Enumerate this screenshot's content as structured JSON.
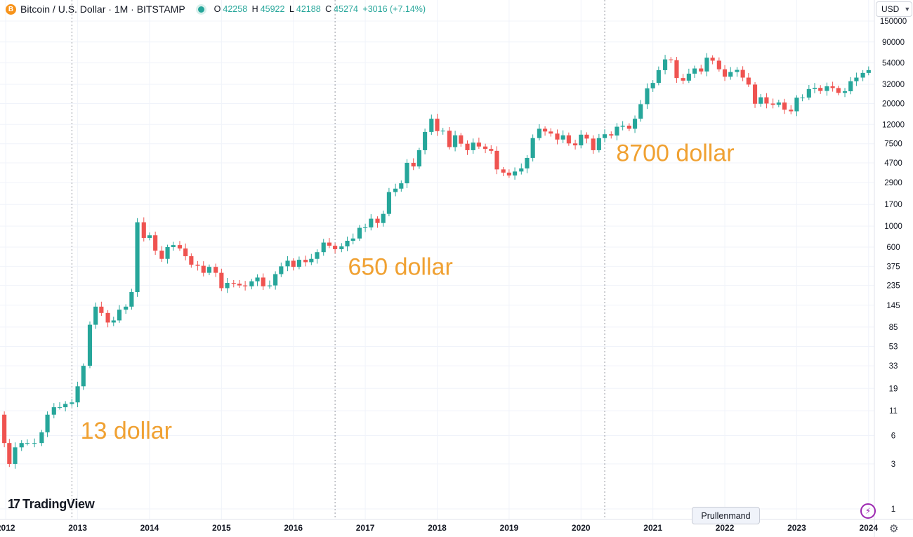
{
  "header": {
    "symbol_title": "Bitcoin / U.S. Dollar · 1M · BITSTAMP",
    "coin_icon": "B",
    "ohlc": {
      "o_label": "O",
      "o_value": "42258",
      "h_label": "H",
      "h_value": "45922",
      "l_label": "L",
      "l_value": "42188",
      "c_label": "C",
      "c_value": "45274",
      "change": "+3016 (+7.14%)"
    }
  },
  "currency_selector": {
    "label": "USD",
    "icon": "chevron-down-icon"
  },
  "logo": {
    "mark": "17",
    "text": "TradingView"
  },
  "tooltip": {
    "text": "Prullenmand"
  },
  "colors": {
    "up": "#26a69a",
    "down": "#ef5350",
    "annotation": "#f0a132",
    "grid": "#f0f3fa"
  },
  "icons": {
    "alert": "lightning-icon",
    "settings": "gear-icon"
  },
  "chart_data": {
    "type": "candlestick",
    "title": "Bitcoin / U.S. Dollar · 1M · BITSTAMP",
    "y_scale": "log",
    "ylim": [
      1,
      150000
    ],
    "y_ticks": [
      "150000",
      "90000",
      "54000",
      "32000",
      "20000",
      "12000",
      "7500",
      "4700",
      "2900",
      "1700",
      "1000",
      "600",
      "375",
      "235",
      "145",
      "85",
      "53",
      "33",
      "19",
      "11",
      "6",
      "3",
      "1"
    ],
    "x_ticks": [
      "2012",
      "2013",
      "2014",
      "2015",
      "2016",
      "2017",
      "2018",
      "2019",
      "2020",
      "2021",
      "2022",
      "2023",
      "2024"
    ],
    "x_range": [
      2011.92,
      2024.08
    ],
    "grid": true,
    "annotations": [
      {
        "text": "13 dollar",
        "x": 2013.0,
        "y": 6.8
      },
      {
        "text": "650 dollar",
        "x": 2016.72,
        "y": 375
      },
      {
        "text": "8700 dollar",
        "x": 2020.45,
        "y": 6000
      }
    ],
    "marker_lines": [
      2012.92,
      2016.58,
      2020.33
    ],
    "anchors": [
      [
        2011.92,
        10
      ],
      [
        2011.98,
        5
      ],
      [
        2012.05,
        3
      ],
      [
        2012.13,
        4.5
      ],
      [
        2012.22,
        5
      ],
      [
        2012.3,
        5
      ],
      [
        2012.4,
        5
      ],
      [
        2012.5,
        6.5
      ],
      [
        2012.58,
        10
      ],
      [
        2012.67,
        12
      ],
      [
        2012.75,
        12
      ],
      [
        2012.83,
        13
      ],
      [
        2012.92,
        13.5
      ],
      [
        2013.0,
        20
      ],
      [
        2013.08,
        33
      ],
      [
        2013.17,
        90
      ],
      [
        2013.25,
        140
      ],
      [
        2013.33,
        120
      ],
      [
        2013.42,
        95
      ],
      [
        2013.5,
        100
      ],
      [
        2013.58,
        130
      ],
      [
        2013.67,
        140
      ],
      [
        2013.75,
        200
      ],
      [
        2013.83,
        1100
      ],
      [
        2013.92,
        750
      ],
      [
        2014.0,
        800
      ],
      [
        2014.08,
        550
      ],
      [
        2014.17,
        450
      ],
      [
        2014.25,
        600
      ],
      [
        2014.33,
        630
      ],
      [
        2014.42,
        580
      ],
      [
        2014.5,
        480
      ],
      [
        2014.58,
        390
      ],
      [
        2014.67,
        380
      ],
      [
        2014.75,
        320
      ],
      [
        2014.83,
        370
      ],
      [
        2014.92,
        320
      ],
      [
        2015.0,
        220
      ],
      [
        2015.08,
        250
      ],
      [
        2015.17,
        245
      ],
      [
        2015.25,
        235
      ],
      [
        2015.33,
        230
      ],
      [
        2015.42,
        260
      ],
      [
        2015.5,
        285
      ],
      [
        2015.58,
        230
      ],
      [
        2015.67,
        235
      ],
      [
        2015.75,
        310
      ],
      [
        2015.83,
        375
      ],
      [
        2015.92,
        430
      ],
      [
        2016.0,
        370
      ],
      [
        2016.08,
        440
      ],
      [
        2016.17,
        415
      ],
      [
        2016.25,
        450
      ],
      [
        2016.33,
        530
      ],
      [
        2016.42,
        670
      ],
      [
        2016.5,
        620
      ],
      [
        2016.58,
        570
      ],
      [
        2016.67,
        610
      ],
      [
        2016.75,
        700
      ],
      [
        2016.83,
        740
      ],
      [
        2016.92,
        960
      ],
      [
        2017.0,
        970
      ],
      [
        2017.08,
        1200
      ],
      [
        2017.17,
        1080
      ],
      [
        2017.25,
        1350
      ],
      [
        2017.33,
        2300
      ],
      [
        2017.42,
        2500
      ],
      [
        2017.5,
        2850
      ],
      [
        2017.58,
        4700
      ],
      [
        2017.67,
        4300
      ],
      [
        2017.75,
        6400
      ],
      [
        2017.83,
        10000
      ],
      [
        2017.92,
        13800
      ],
      [
        2018.0,
        10200
      ],
      [
        2018.08,
        10300
      ],
      [
        2018.17,
        6900
      ],
      [
        2018.25,
        9200
      ],
      [
        2018.33,
        7500
      ],
      [
        2018.42,
        6400
      ],
      [
        2018.5,
        7700
      ],
      [
        2018.58,
        7000
      ],
      [
        2018.67,
        6600
      ],
      [
        2018.75,
        6300
      ],
      [
        2018.83,
        4000
      ],
      [
        2018.92,
        3700
      ],
      [
        2019.0,
        3450
      ],
      [
        2019.08,
        3800
      ],
      [
        2019.17,
        4100
      ],
      [
        2019.25,
        5300
      ],
      [
        2019.33,
        8600
      ],
      [
        2019.42,
        10800
      ],
      [
        2019.5,
        10100
      ],
      [
        2019.58,
        9600
      ],
      [
        2019.67,
        8300
      ],
      [
        2019.75,
        9200
      ],
      [
        2019.83,
        7550
      ],
      [
        2019.92,
        7200
      ],
      [
        2020.0,
        9350
      ],
      [
        2020.08,
        8500
      ],
      [
        2020.17,
        6400
      ],
      [
        2020.25,
        8600
      ],
      [
        2020.33,
        9450
      ],
      [
        2020.42,
        9150
      ],
      [
        2020.5,
        11350
      ],
      [
        2020.58,
        11650
      ],
      [
        2020.67,
        10800
      ],
      [
        2020.75,
        13800
      ],
      [
        2020.83,
        19700
      ],
      [
        2020.92,
        29000
      ],
      [
        2021.0,
        33100
      ],
      [
        2021.08,
        45200
      ],
      [
        2021.17,
        58800
      ],
      [
        2021.25,
        57700
      ],
      [
        2021.33,
        37300
      ],
      [
        2021.42,
        35000
      ],
      [
        2021.5,
        41500
      ],
      [
        2021.58,
        47100
      ],
      [
        2021.67,
        43800
      ],
      [
        2021.75,
        61300
      ],
      [
        2021.83,
        57000
      ],
      [
        2021.92,
        46200
      ],
      [
        2022.0,
        38500
      ],
      [
        2022.08,
        43200
      ],
      [
        2022.17,
        45500
      ],
      [
        2022.25,
        37700
      ],
      [
        2022.33,
        31800
      ],
      [
        2022.42,
        19900
      ],
      [
        2022.5,
        23300
      ],
      [
        2022.58,
        20000
      ],
      [
        2022.67,
        19400
      ],
      [
        2022.75,
        20500
      ],
      [
        2022.83,
        17200
      ],
      [
        2022.92,
        16550
      ],
      [
        2023.0,
        23100
      ],
      [
        2023.08,
        23150
      ],
      [
        2023.17,
        28500
      ],
      [
        2023.25,
        29300
      ],
      [
        2023.33,
        27200
      ],
      [
        2023.42,
        30500
      ],
      [
        2023.5,
        29200
      ],
      [
        2023.58,
        25950
      ],
      [
        2023.67,
        27000
      ],
      [
        2023.75,
        34500
      ],
      [
        2023.83,
        37700
      ],
      [
        2023.92,
        42258
      ],
      [
        2024.0,
        45274
      ]
    ]
  }
}
